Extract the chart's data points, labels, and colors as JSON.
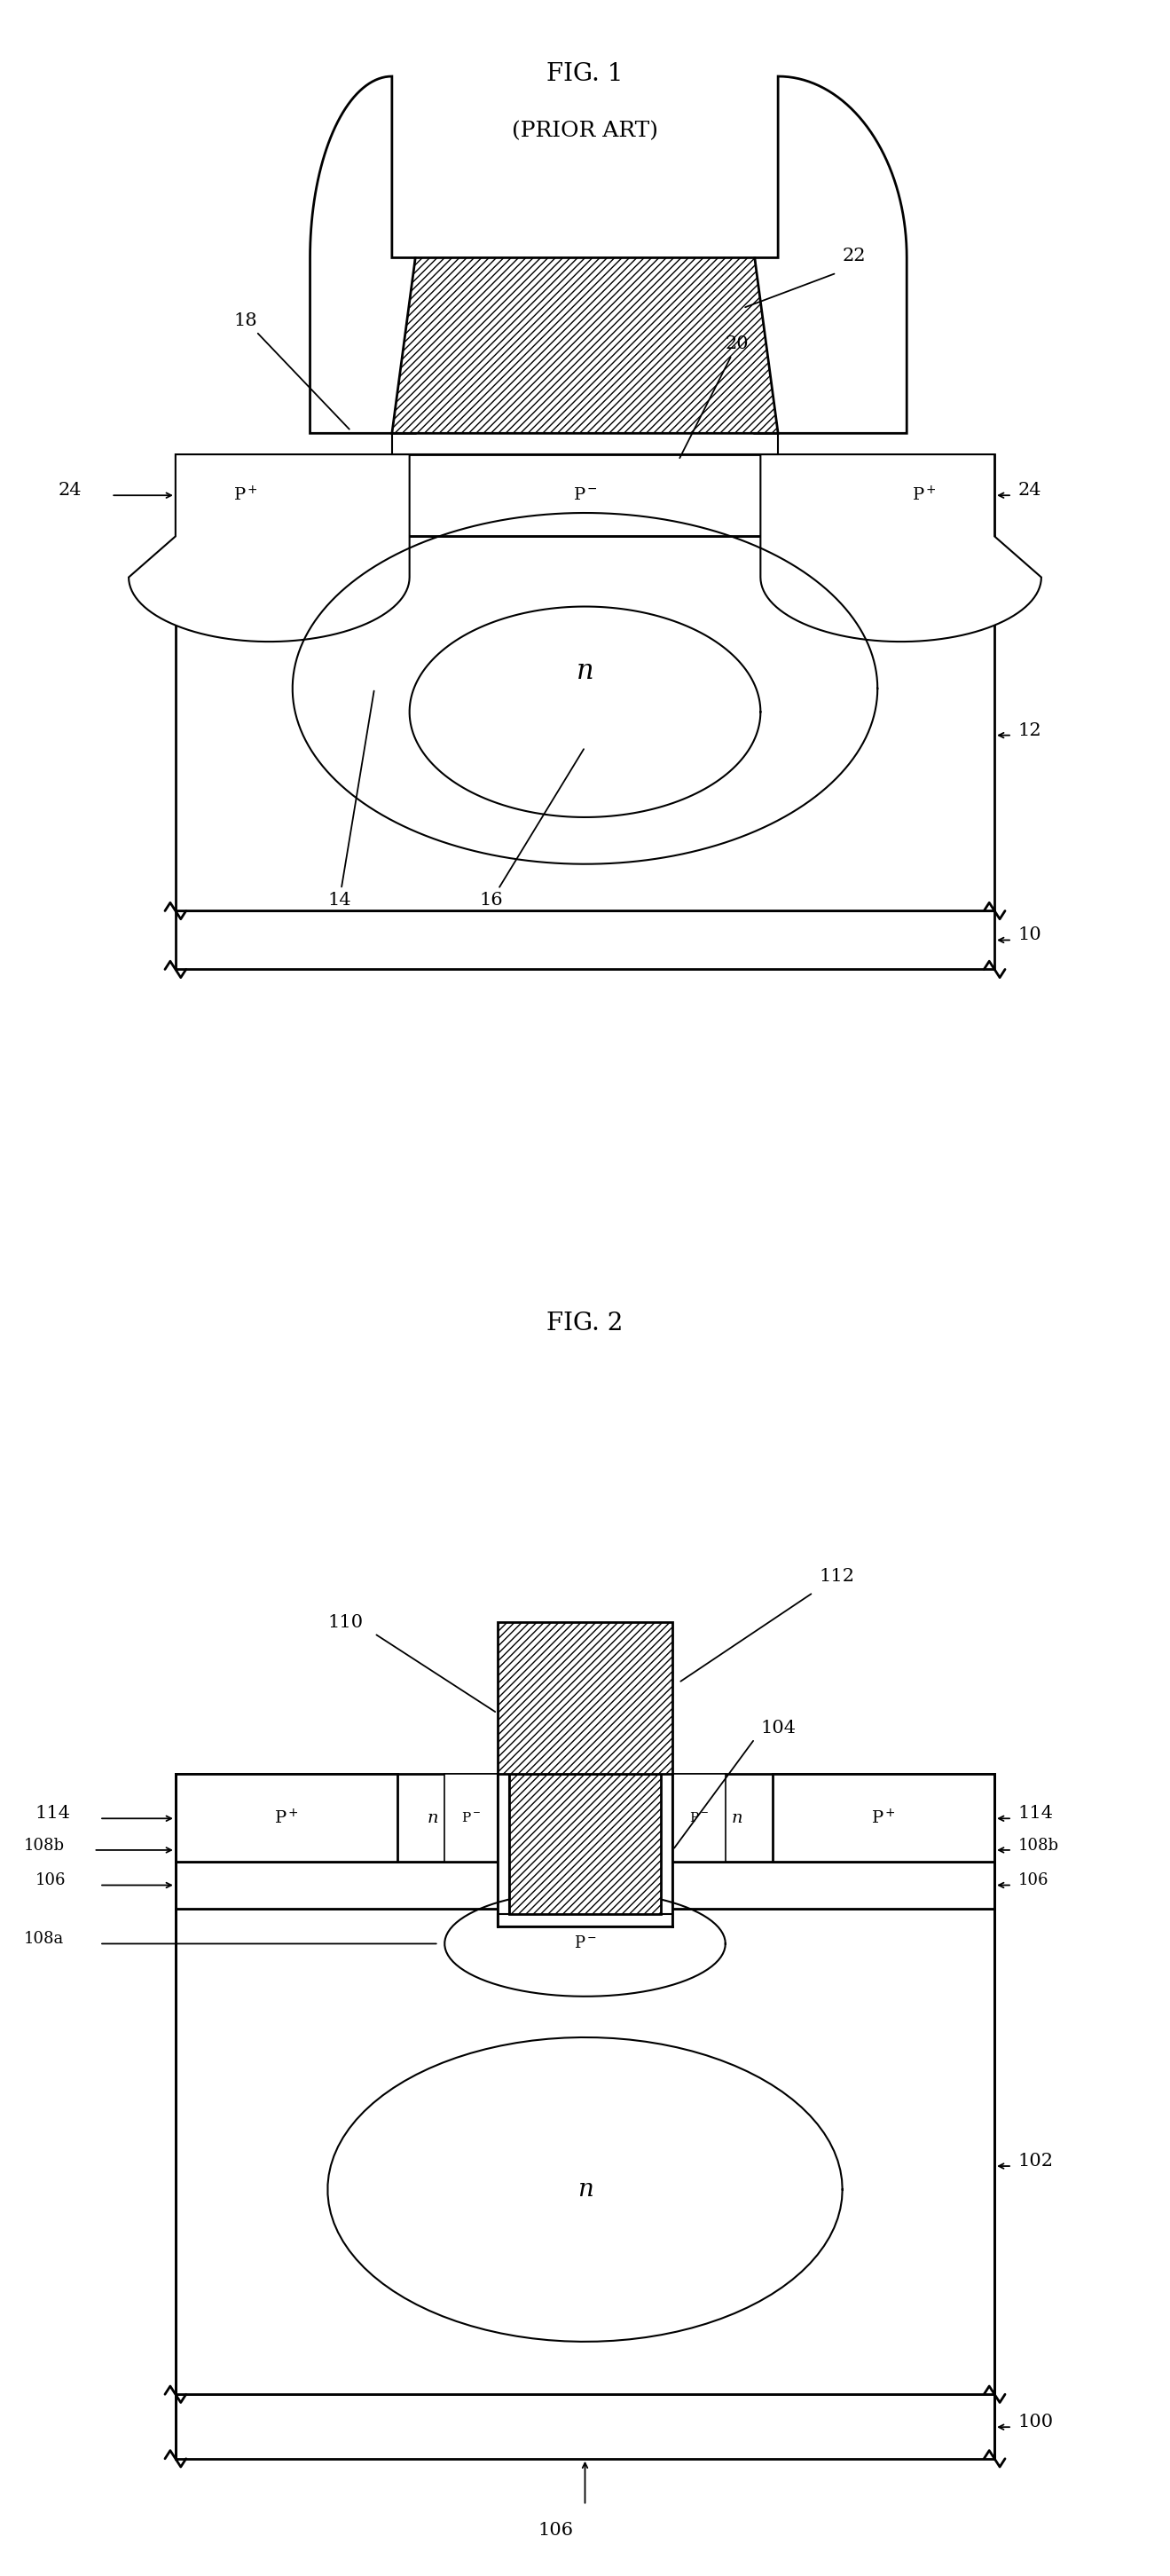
{
  "fig1_title": "FIG. 1",
  "fig1_subtitle": "(PRIOR ART)",
  "fig2_title": "FIG. 2",
  "bg_color": "#ffffff",
  "lw_main": 2.0,
  "lw_thin": 1.5,
  "label_fs": 15,
  "title_fs": 20,
  "sub_fs": 18
}
